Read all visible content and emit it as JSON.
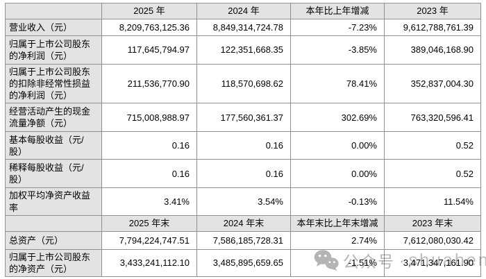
{
  "table": {
    "sections": [
      {
        "header": [
          "",
          "2025 年",
          "2024 年",
          "本年比上年增减",
          "2023 年"
        ],
        "rows": [
          {
            "label": "营业收入（元）",
            "values": [
              "8,209,763,125.36",
              "8,849,314,724.78",
              "-7.23%",
              "9,612,788,761.39"
            ]
          },
          {
            "label": "归属于上市公司股东的净利润（元）",
            "values": [
              "117,645,794.97",
              "122,351,668.35",
              "-3.85%",
              "389,046,168.90"
            ]
          },
          {
            "label": "归属于上市公司股东的扣除非经常性损益的净利润（元）",
            "values": [
              "211,536,770.90",
              "118,570,698.62",
              "78.41%",
              "352,837,004.30"
            ]
          },
          {
            "label": "经营活动产生的现金流量净额（元）",
            "values": [
              "715,008,988.97",
              "177,560,361.37",
              "302.69%",
              "763,320,596.41"
            ]
          },
          {
            "label": "基本每股收益（元/股）",
            "values": [
              "0.16",
              "0.16",
              "0.00%",
              "0.52"
            ]
          },
          {
            "label": "稀释每股收益（元/股）",
            "values": [
              "0.16",
              "0.16",
              "0.00%",
              "0.52"
            ]
          },
          {
            "label": "加权平均净资产收益率",
            "values": [
              "3.41%",
              "3.54%",
              "-0.13%",
              "11.54%"
            ]
          }
        ]
      },
      {
        "header": [
          "",
          "2025 年末",
          "2024 年末",
          "本年末比上年末增减",
          "2023 年末"
        ],
        "rows": [
          {
            "label": "总资产（元）",
            "values": [
              "7,794,224,747.51",
              "7,586,185,728.31",
              "2.74%",
              "7,612,080,030.42"
            ]
          },
          {
            "label": "归属于上市公司股东的净资产（元）",
            "values": [
              "3,433,241,112.10",
              "3,485,895,659.65",
              "-1.51%",
              "3,471,347,161.90"
            ]
          }
        ]
      }
    ]
  },
  "watermark": {
    "platform_label": "公众号",
    "separator": "·",
    "account": "shuaheng",
    "icon": "wechat-icon"
  },
  "colors": {
    "header_cell_bg": "#e3e3e3",
    "table_border": "#909090",
    "watermark_gray": "#b4b4b4",
    "text": "#000000",
    "page_bg": "#ffffff"
  }
}
